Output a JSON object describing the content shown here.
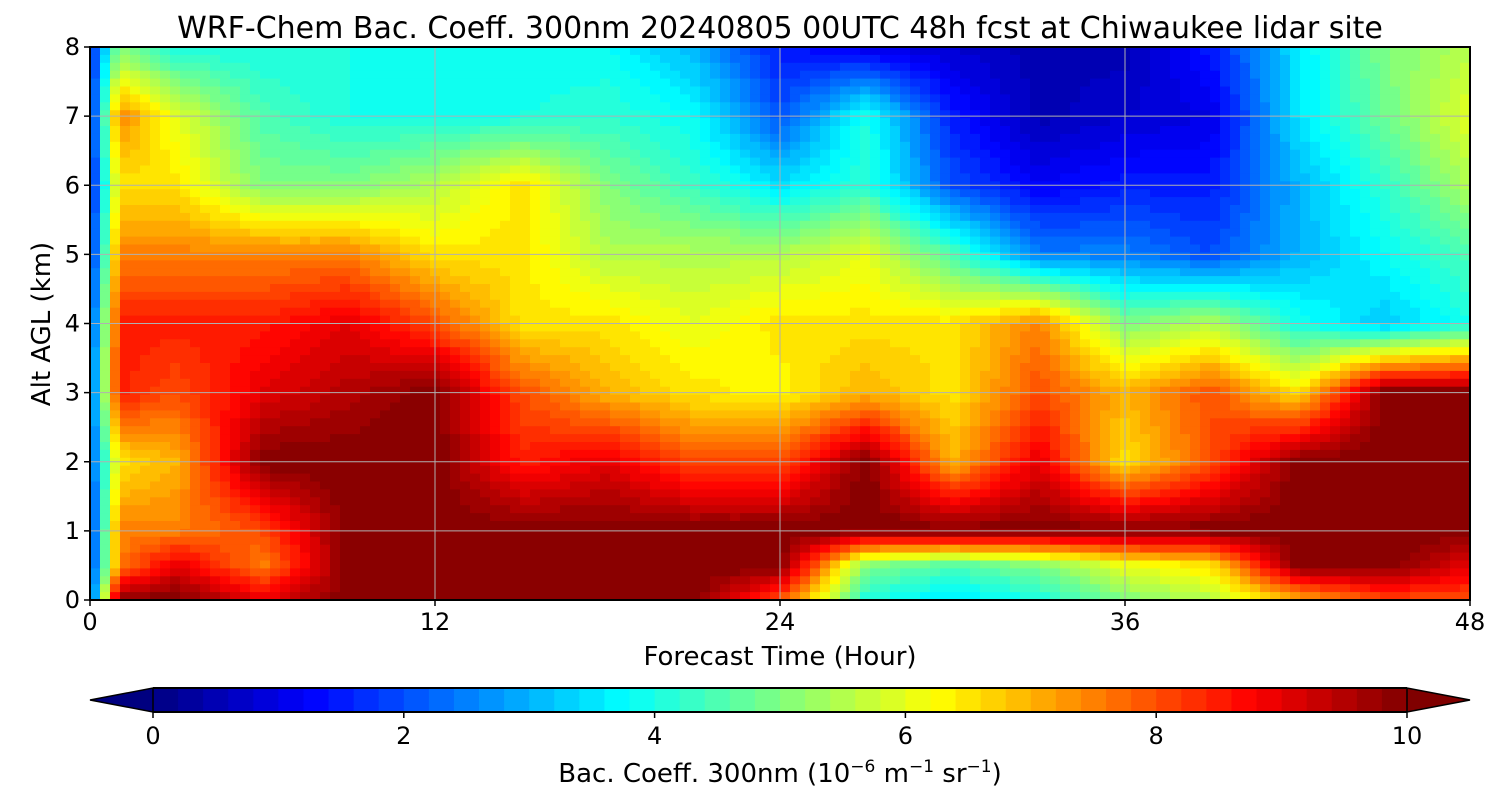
{
  "chart_data": {
    "type": "heatmap",
    "title": "WRF-Chem Bac. Coeff. 300nm  20240805 00UTC 48h fcst at Chiwaukee lidar site",
    "xlabel": "Forecast Time (Hour)",
    "ylabel": "Alt AGL (km)",
    "xlim": [
      0,
      48
    ],
    "ylim": [
      0,
      8
    ],
    "xticks": [
      "0",
      "12",
      "24",
      "36",
      "48"
    ],
    "yticks": [
      "0",
      "1",
      "2",
      "3",
      "4",
      "5",
      "6",
      "7",
      "8"
    ],
    "grid": true,
    "colormap": "jet",
    "colorbar": {
      "label_main": "Bac. Coeff. 300nm  (10",
      "label_exp1": "−6",
      "label_mid": " m",
      "label_exp2": "−1",
      "label_mid2": " sr",
      "label_exp3": "−1",
      "label_end": ")",
      "range": [
        0,
        10
      ],
      "ticks": [
        "0",
        "2",
        "4",
        "6",
        "8",
        "10"
      ],
      "extend": "both",
      "placement": "bottom"
    },
    "x": [
      0,
      1,
      3,
      6,
      9,
      12,
      15,
      18,
      21,
      24,
      27,
      30,
      33,
      36,
      39,
      42,
      45,
      48
    ],
    "y": [
      0,
      0.5,
      1,
      2,
      3,
      4,
      5,
      6,
      7,
      8
    ],
    "values_by_time": [
      [
        1.5,
        1.5,
        1.5,
        1.8,
        1.8,
        1.5,
        1.2,
        1.2,
        1.2,
        1.5
      ],
      [
        10,
        7.5,
        7.5,
        6.5,
        8.5,
        8.5,
        7.5,
        6.5,
        7.5,
        5
      ],
      [
        10,
        9,
        7.5,
        7,
        8,
        8.5,
        7.5,
        6.5,
        6,
        4
      ],
      [
        9,
        7.5,
        8,
        10,
        9,
        8.5,
        7.5,
        5,
        4.5,
        4
      ],
      [
        10,
        10,
        10,
        10,
        9.5,
        9,
        7.5,
        5,
        4,
        4
      ],
      [
        10,
        10,
        10,
        10,
        10,
        8,
        6.5,
        5.5,
        4,
        3.8
      ],
      [
        10,
        10,
        10,
        8.5,
        8,
        6.5,
        6.5,
        6.5,
        4,
        3.8
      ],
      [
        10,
        10,
        10,
        9,
        7,
        6.5,
        5.5,
        5,
        4.2,
        3.8
      ],
      [
        10,
        10,
        10,
        8,
        6.5,
        6,
        5.5,
        4.3,
        3.8,
        3
      ],
      [
        8,
        10,
        10,
        8,
        6.3,
        6.5,
        5.5,
        3.5,
        2,
        1.5
      ],
      [
        4,
        5,
        10,
        10,
        7,
        6.5,
        6,
        4.2,
        4,
        1
      ],
      [
        3.5,
        4.5,
        10,
        7,
        6.5,
        6.5,
        4.5,
        2,
        1.5,
        0.8
      ],
      [
        4,
        5,
        10,
        9,
        8,
        7.5,
        2.5,
        1.2,
        0.5,
        0.5
      ],
      [
        5,
        6,
        10,
        6.5,
        7,
        5,
        2.5,
        1.5,
        0.8,
        0.5
      ],
      [
        5.5,
        6.5,
        10,
        8,
        8,
        5.5,
        2,
        1.5,
        1,
        1.5
      ],
      [
        7,
        10,
        10,
        10,
        6.5,
        4,
        3,
        3,
        3.5,
        3.5
      ],
      [
        8,
        10,
        10,
        10,
        10,
        3.2,
        3.8,
        4.2,
        4.8,
        5
      ],
      [
        8,
        9,
        10,
        10,
        10,
        4,
        4.5,
        5.5,
        6,
        5.5
      ]
    ]
  }
}
